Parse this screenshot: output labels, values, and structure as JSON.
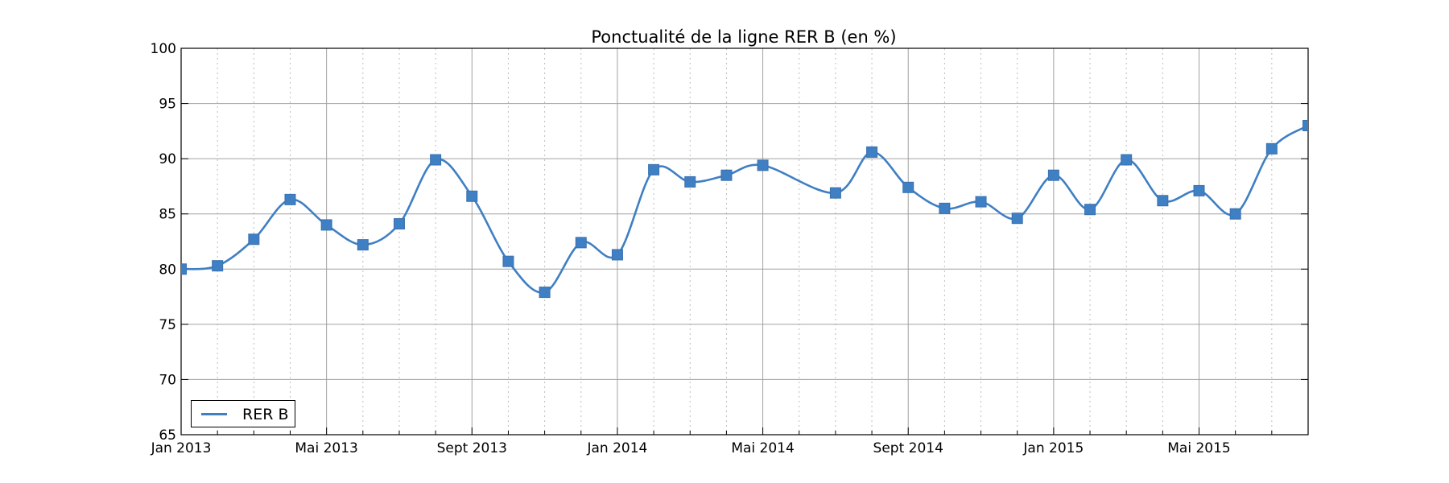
{
  "chart_data": {
    "type": "line",
    "title": "Ponctualité de la ligne RER B (en %)",
    "xlabel": "",
    "ylabel": "",
    "ylim": [
      65,
      100
    ],
    "yticks": [
      65,
      70,
      75,
      80,
      85,
      90,
      95,
      100
    ],
    "xlim": [
      "2013-01",
      "2015-08"
    ],
    "xticks": [
      {
        "date": "2013-01",
        "label": "Jan 2013"
      },
      {
        "date": "2013-05",
        "label": "Mai 2013"
      },
      {
        "date": "2013-09",
        "label": "Sept 2013"
      },
      {
        "date": "2014-01",
        "label": "Jan 2014"
      },
      {
        "date": "2014-05",
        "label": "Mai 2014"
      },
      {
        "date": "2014-09",
        "label": "Sept 2014"
      },
      {
        "date": "2015-01",
        "label": "Jan 2015"
      },
      {
        "date": "2015-05",
        "label": "Mai 2015"
      }
    ],
    "grid": true,
    "legend": "lower-left",
    "series": [
      {
        "name": "RER B",
        "color": "#3f7fc3",
        "marker": "square",
        "x": [
          "2013-01",
          "2013-02",
          "2013-03",
          "2013-04",
          "2013-05",
          "2013-06",
          "2013-07",
          "2013-08",
          "2013-09",
          "2013-10",
          "2013-11",
          "2013-12",
          "2014-01",
          "2014-02",
          "2014-03",
          "2014-04",
          "2014-05",
          "2014-07",
          "2014-08",
          "2014-09",
          "2014-10",
          "2014-11",
          "2014-12",
          "2015-01",
          "2015-02",
          "2015-03",
          "2015-04",
          "2015-05",
          "2015-06",
          "2015-07",
          "2015-08"
        ],
        "y": [
          80.0,
          80.3,
          82.7,
          86.3,
          84.0,
          82.2,
          84.1,
          89.9,
          86.6,
          80.7,
          77.9,
          82.4,
          81.3,
          89.0,
          87.9,
          88.5,
          89.4,
          86.9,
          90.6,
          87.4,
          85.5,
          86.1,
          84.6,
          88.5,
          85.4,
          89.9,
          86.2,
          87.1,
          85.0,
          90.9,
          93.0
        ]
      }
    ]
  }
}
